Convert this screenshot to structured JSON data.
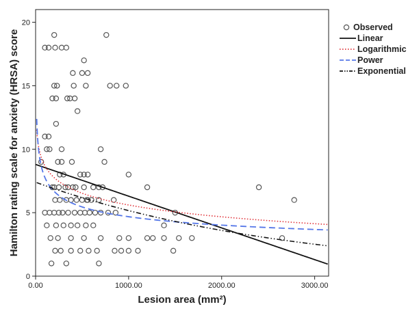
{
  "chart_data": {
    "type": "scatter",
    "title": "",
    "xlabel": "Lesion area (mm²)",
    "ylabel": "Hamilton rating scale for anxiety (HRSA) score",
    "xlim": [
      0,
      3150
    ],
    "ylim": [
      0,
      21
    ],
    "x_ticks": [
      0,
      1000,
      2000,
      3000
    ],
    "x_tick_labels": [
      "0.00",
      "1000.00",
      "2000.00",
      "3000.00"
    ],
    "y_ticks": [
      0,
      5,
      10,
      15,
      20
    ],
    "y_tick_labels": [
      "0",
      "5",
      "10",
      "15",
      "20"
    ],
    "grid": false,
    "legend_position": "top-right, outside plot",
    "legend": [
      {
        "label": "Observed",
        "style": "circle",
        "color": "#555555"
      },
      {
        "label": "Linear",
        "style": "solid",
        "color": "#111111"
      },
      {
        "label": "Logarithmic",
        "style": "dotted",
        "color": "#e0333a"
      },
      {
        "label": "Power",
        "style": "dashed",
        "color": "#5577e8"
      },
      {
        "label": "Exponential",
        "style": "dash-dot-dot",
        "color": "#111111"
      }
    ],
    "series": [
      {
        "name": "Observed",
        "kind": "points",
        "color": "#555555",
        "points": [
          [
            200,
            19
          ],
          [
            760,
            19
          ],
          [
            100,
            18
          ],
          [
            140,
            18
          ],
          [
            210,
            18
          ],
          [
            280,
            18
          ],
          [
            330,
            18
          ],
          [
            520,
            17
          ],
          [
            400,
            16
          ],
          [
            500,
            16
          ],
          [
            560,
            16
          ],
          [
            200,
            15
          ],
          [
            230,
            15
          ],
          [
            410,
            15
          ],
          [
            540,
            15
          ],
          [
            800,
            15
          ],
          [
            870,
            15
          ],
          [
            970,
            15
          ],
          [
            180,
            14
          ],
          [
            220,
            14
          ],
          [
            340,
            14
          ],
          [
            370,
            14
          ],
          [
            420,
            14
          ],
          [
            450,
            13
          ],
          [
            220,
            12
          ],
          [
            100,
            11
          ],
          [
            140,
            11
          ],
          [
            120,
            10
          ],
          [
            150,
            10
          ],
          [
            280,
            10
          ],
          [
            700,
            10
          ],
          [
            60,
            9
          ],
          [
            240,
            9
          ],
          [
            280,
            9
          ],
          [
            390,
            9
          ],
          [
            740,
            9
          ],
          [
            260,
            8
          ],
          [
            300,
            8
          ],
          [
            480,
            8
          ],
          [
            520,
            8
          ],
          [
            560,
            8
          ],
          [
            1000,
            8
          ],
          [
            180,
            7
          ],
          [
            200,
            7
          ],
          [
            250,
            7
          ],
          [
            320,
            7
          ],
          [
            350,
            7
          ],
          [
            400,
            7
          ],
          [
            430,
            7
          ],
          [
            520,
            7
          ],
          [
            620,
            7
          ],
          [
            680,
            7
          ],
          [
            720,
            7
          ],
          [
            1200,
            7
          ],
          [
            2400,
            7
          ],
          [
            210,
            6
          ],
          [
            260,
            6
          ],
          [
            330,
            6
          ],
          [
            380,
            6
          ],
          [
            440,
            6
          ],
          [
            500,
            6
          ],
          [
            550,
            6
          ],
          [
            560,
            6
          ],
          [
            600,
            6
          ],
          [
            680,
            6
          ],
          [
            840,
            6
          ],
          [
            2780,
            6
          ],
          [
            100,
            5
          ],
          [
            150,
            5
          ],
          [
            200,
            5
          ],
          [
            250,
            5
          ],
          [
            290,
            5
          ],
          [
            350,
            5
          ],
          [
            420,
            5
          ],
          [
            480,
            5
          ],
          [
            530,
            5
          ],
          [
            580,
            5
          ],
          [
            640,
            5
          ],
          [
            700,
            5
          ],
          [
            780,
            5
          ],
          [
            860,
            5
          ],
          [
            1500,
            5
          ],
          [
            120,
            4
          ],
          [
            220,
            4
          ],
          [
            300,
            4
          ],
          [
            380,
            4
          ],
          [
            450,
            4
          ],
          [
            540,
            4
          ],
          [
            620,
            4
          ],
          [
            1380,
            4
          ],
          [
            160,
            3
          ],
          [
            240,
            3
          ],
          [
            380,
            3
          ],
          [
            520,
            3
          ],
          [
            700,
            3
          ],
          [
            900,
            3
          ],
          [
            1000,
            3
          ],
          [
            1200,
            3
          ],
          [
            1260,
            3
          ],
          [
            1380,
            3
          ],
          [
            1540,
            3
          ],
          [
            1680,
            3
          ],
          [
            2650,
            3
          ],
          [
            210,
            2
          ],
          [
            270,
            2
          ],
          [
            380,
            2
          ],
          [
            480,
            2
          ],
          [
            570,
            2
          ],
          [
            660,
            2
          ],
          [
            850,
            2
          ],
          [
            920,
            2
          ],
          [
            1000,
            2
          ],
          [
            1100,
            2
          ],
          [
            1480,
            2
          ],
          [
            170,
            1
          ],
          [
            330,
            1
          ],
          [
            680,
            1
          ]
        ]
      },
      {
        "name": "Linear",
        "kind": "curve",
        "model": "linear",
        "color": "#111111",
        "width": 1.8,
        "dash": "",
        "a": 8.8,
        "b": -0.0025
      },
      {
        "name": "Logarithmic",
        "kind": "curve",
        "model": "logarithmic",
        "color": "#e0333a",
        "width": 1.6,
        "dash": "1.5,2.5",
        "a": 14.86,
        "b": -1.34
      },
      {
        "name": "Power",
        "kind": "curve",
        "model": "power",
        "color": "#5577e8",
        "width": 1.8,
        "dash": "9,5",
        "a": 21.4,
        "b": -0.22
      },
      {
        "name": "Exponential",
        "kind": "curve",
        "model": "exponential",
        "color": "#111111",
        "width": 1.6,
        "dash": "7,3,1.5,3,1.5,3",
        "a": 7.4,
        "b": -0.00036
      }
    ]
  }
}
